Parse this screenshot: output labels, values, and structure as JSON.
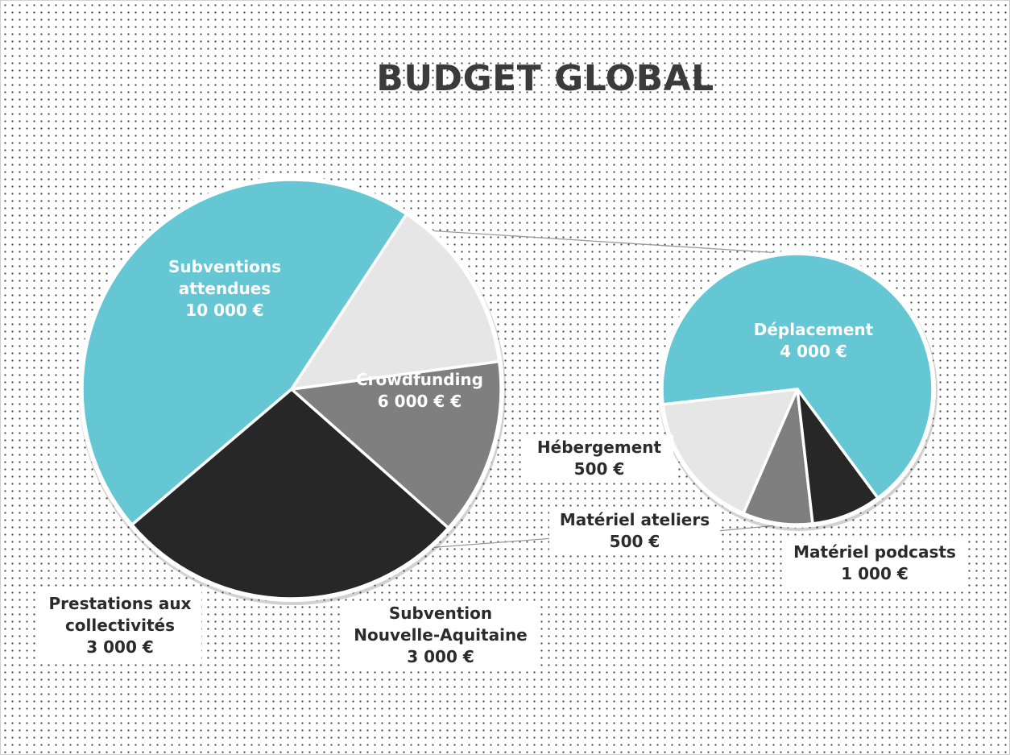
{
  "chart_data": [
    {
      "type": "pie",
      "title": "BUDGET GLOBAL",
      "unit": "€",
      "slices": [
        {
          "name": "Subventions attendues",
          "value": 10000,
          "lines": [
            "Subventions",
            "attendues",
            "10 000  €"
          ],
          "color": "#65c6d4"
        },
        {
          "name": "Crowdfunding",
          "value": 6000,
          "lines": [
            "Crowdfunding",
            "6 000  €  €"
          ],
          "color": "#272727"
        },
        {
          "name": "Subvention Nouvelle-Aquitaine",
          "value": 3000,
          "lines": [
            "Subvention",
            "Nouvelle-Aquitaine",
            "3 000  €"
          ],
          "color": "#7f7f7f"
        },
        {
          "name": "Prestations aux collectivités",
          "value": 3000,
          "lines": [
            "Prestations aux",
            "collectivités",
            "3 000  €"
          ],
          "color": "#e6e6e6"
        }
      ]
    },
    {
      "type": "pie",
      "unit": "€",
      "slices": [
        {
          "name": "Déplacement",
          "value": 4000,
          "lines": [
            "Déplacement",
            "4 000  €"
          ],
          "color": "#65c6d4"
        },
        {
          "name": "Matériel podcasts",
          "value": 1000,
          "lines": [
            "Matériel podcasts",
            "1 000  €"
          ],
          "color": "#e6e6e6"
        },
        {
          "name": "Matériel ateliers",
          "value": 500,
          "lines": [
            "Matériel ateliers",
            "500  €"
          ],
          "color": "#7f7f7f"
        },
        {
          "name": "Hébergement",
          "value": 500,
          "lines": [
            "Hébergement",
            "500  €"
          ],
          "color": "#272727"
        }
      ]
    }
  ]
}
